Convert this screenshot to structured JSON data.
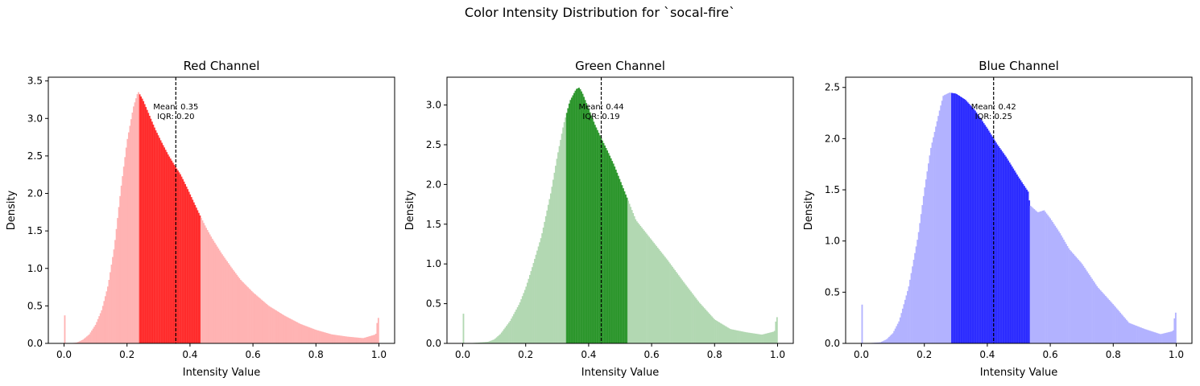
{
  "figure_title": "Color Intensity Distribution for `socal-fire`",
  "chart_data": [
    {
      "type": "bar",
      "title": "Red Channel",
      "xlabel": "Intensity Value",
      "ylabel": "Density",
      "xlim": [
        -0.05,
        1.05
      ],
      "ylim": [
        0,
        3.55
      ],
      "xticks": [
        "0.0",
        "0.2",
        "0.4",
        "0.6",
        "0.8",
        "1.0"
      ],
      "yticks": [
        "0.0",
        "0.5",
        "1.0",
        "1.5",
        "2.0",
        "2.5",
        "3.0",
        "3.5"
      ],
      "color": "#ff0000",
      "light_color": "#ffb3b3",
      "iqr_range": [
        0.24,
        0.435
      ],
      "mean": 0.355,
      "annotation": [
        "Mean: 0.35",
        "IQR: 0.20"
      ],
      "profile_x": [
        0,
        0.004,
        0.01,
        0.04,
        0.06,
        0.08,
        0.1,
        0.12,
        0.14,
        0.16,
        0.18,
        0.2,
        0.22,
        0.235,
        0.25,
        0.27,
        0.29,
        0.31,
        0.33,
        0.35,
        0.37,
        0.39,
        0.41,
        0.43,
        0.45,
        0.47,
        0.5,
        0.53,
        0.56,
        0.6,
        0.65,
        0.7,
        0.75,
        0.8,
        0.85,
        0.9,
        0.95,
        0.99,
        0.996
      ],
      "profile_y": [
        0.73,
        0.0,
        0.0,
        0.01,
        0.05,
        0.12,
        0.25,
        0.45,
        0.78,
        1.3,
        2.05,
        2.7,
        3.15,
        3.36,
        3.25,
        3.05,
        2.85,
        2.68,
        2.52,
        2.38,
        2.25,
        2.08,
        1.9,
        1.72,
        1.55,
        1.4,
        1.2,
        1.02,
        0.85,
        0.68,
        0.5,
        0.37,
        0.26,
        0.18,
        0.12,
        0.09,
        0.07,
        0.12,
        0.34
      ]
    },
    {
      "type": "bar",
      "title": "Green Channel",
      "xlabel": "Intensity Value",
      "ylabel": "Density",
      "xlim": [
        -0.05,
        1.05
      ],
      "ylim": [
        0,
        3.35
      ],
      "xticks": [
        "0.0",
        "0.2",
        "0.4",
        "0.6",
        "0.8",
        "1.0"
      ],
      "yticks": [
        "0.0",
        "0.5",
        "1.0",
        "1.5",
        "2.0",
        "2.5",
        "3.0"
      ],
      "color": "#008000",
      "light_color": "#b2d8b2",
      "iqr_range": [
        0.33,
        0.525
      ],
      "mean": 0.44,
      "annotation": [
        "Mean: 0.44",
        "IQR: 0.19"
      ],
      "profile_x": [
        0,
        0.004,
        0.01,
        0.05,
        0.08,
        0.1,
        0.12,
        0.15,
        0.18,
        0.2,
        0.22,
        0.25,
        0.28,
        0.3,
        0.32,
        0.34,
        0.36,
        0.37,
        0.38,
        0.4,
        0.42,
        0.44,
        0.46,
        0.48,
        0.5,
        0.52,
        0.55,
        0.6,
        0.65,
        0.7,
        0.75,
        0.8,
        0.85,
        0.9,
        0.95,
        0.99,
        0.996
      ],
      "profile_y": [
        0.73,
        0.0,
        0.0,
        0.01,
        0.02,
        0.05,
        0.12,
        0.28,
        0.5,
        0.7,
        0.95,
        1.35,
        1.9,
        2.35,
        2.75,
        3.05,
        3.2,
        3.22,
        3.15,
        2.95,
        2.75,
        2.58,
        2.42,
        2.25,
        2.05,
        1.85,
        1.55,
        1.3,
        1.05,
        0.78,
        0.52,
        0.3,
        0.18,
        0.14,
        0.11,
        0.15,
        0.33
      ]
    },
    {
      "type": "bar",
      "title": "Blue Channel",
      "xlabel": "Intensity Value",
      "ylabel": "Density",
      "xlim": [
        -0.05,
        1.05
      ],
      "ylim": [
        0,
        2.6
      ],
      "xticks": [
        "0.0",
        "0.2",
        "0.4",
        "0.6",
        "0.8",
        "1.0"
      ],
      "yticks": [
        "0.0",
        "0.5",
        "1.0",
        "1.5",
        "2.0",
        "2.5"
      ],
      "color": "#0000ff",
      "light_color": "#b2b2ff",
      "iqr_range": [
        0.285,
        0.535
      ],
      "mean": 0.42,
      "annotation": [
        "Mean: 0.42",
        "IQR: 0.25"
      ],
      "profile_x": [
        0,
        0.004,
        0.01,
        0.06,
        0.08,
        0.1,
        0.12,
        0.15,
        0.18,
        0.2,
        0.22,
        0.25,
        0.26,
        0.28,
        0.3,
        0.33,
        0.36,
        0.4,
        0.43,
        0.46,
        0.5,
        0.53,
        0.535,
        0.56,
        0.58,
        0.6,
        0.63,
        0.66,
        0.7,
        0.75,
        0.8,
        0.85,
        0.9,
        0.95,
        0.99,
        0.996
      ],
      "profile_y": [
        0.74,
        0.0,
        0.0,
        0.01,
        0.04,
        0.1,
        0.22,
        0.55,
        1.05,
        1.5,
        1.9,
        2.3,
        2.42,
        2.45,
        2.44,
        2.38,
        2.28,
        2.1,
        1.95,
        1.82,
        1.62,
        1.48,
        1.35,
        1.28,
        1.3,
        1.22,
        1.08,
        0.92,
        0.78,
        0.55,
        0.38,
        0.2,
        0.14,
        0.09,
        0.12,
        0.3
      ]
    }
  ]
}
